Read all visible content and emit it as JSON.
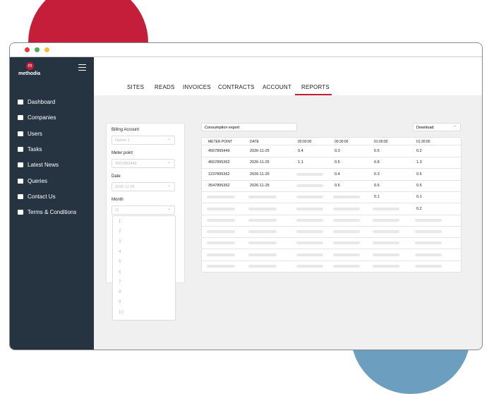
{
  "logo": "methodia",
  "sidebar": {
    "items": [
      "Dashboard",
      "Companies",
      "Users",
      "Tasks",
      "Latest News",
      "Queries",
      "Contact Us",
      "Terms & Conditions"
    ]
  },
  "tabs": [
    "SITES",
    "READS",
    "INVOICES",
    "CONTRACTS",
    "ACCOUNT",
    "REPORTS"
  ],
  "form": {
    "fields": [
      {
        "label": "Billing Account",
        "value": "Option 1"
      },
      {
        "label": "Meter point",
        "value": "4567895449"
      },
      {
        "label": "Date",
        "value": "2026-11-25"
      },
      {
        "label": "Month",
        "value": "11"
      }
    ],
    "month_options": [
      "1",
      "2",
      "3",
      "4",
      "5",
      "6",
      "7",
      "8",
      "9",
      "10"
    ]
  },
  "export": {
    "title": "Consumption export",
    "download": "Download"
  },
  "table": {
    "header": [
      "METER POINT",
      "DATE",
      "00:00:00",
      "00:30:00",
      "01:00:00",
      "01:30:00"
    ],
    "rows": [
      [
        "4567895449",
        "2026-11-25",
        "0.4",
        "0.3",
        "0.5",
        "0.2"
      ],
      [
        "4567895362",
        "2026-11-25",
        "1.1",
        "0.5",
        "0.8",
        "1.3"
      ],
      [
        "1237895362",
        "2026-11-25",
        null,
        "0.4",
        "0.3",
        "0.5"
      ],
      [
        "3547895362",
        "2026-11-25",
        null,
        "0.6",
        "0.6",
        "0.5"
      ],
      [
        null,
        null,
        null,
        null,
        "0.1",
        "0.1"
      ],
      [
        null,
        null,
        null,
        null,
        null,
        "0.2"
      ],
      [
        null,
        null,
        null,
        null,
        null,
        null
      ],
      [
        null,
        null,
        null,
        null,
        null,
        null
      ],
      [
        null,
        null,
        null,
        null,
        null,
        null
      ],
      [
        null,
        null,
        null,
        null,
        null,
        null
      ],
      [
        null,
        null,
        null,
        null,
        null,
        null
      ]
    ]
  }
}
